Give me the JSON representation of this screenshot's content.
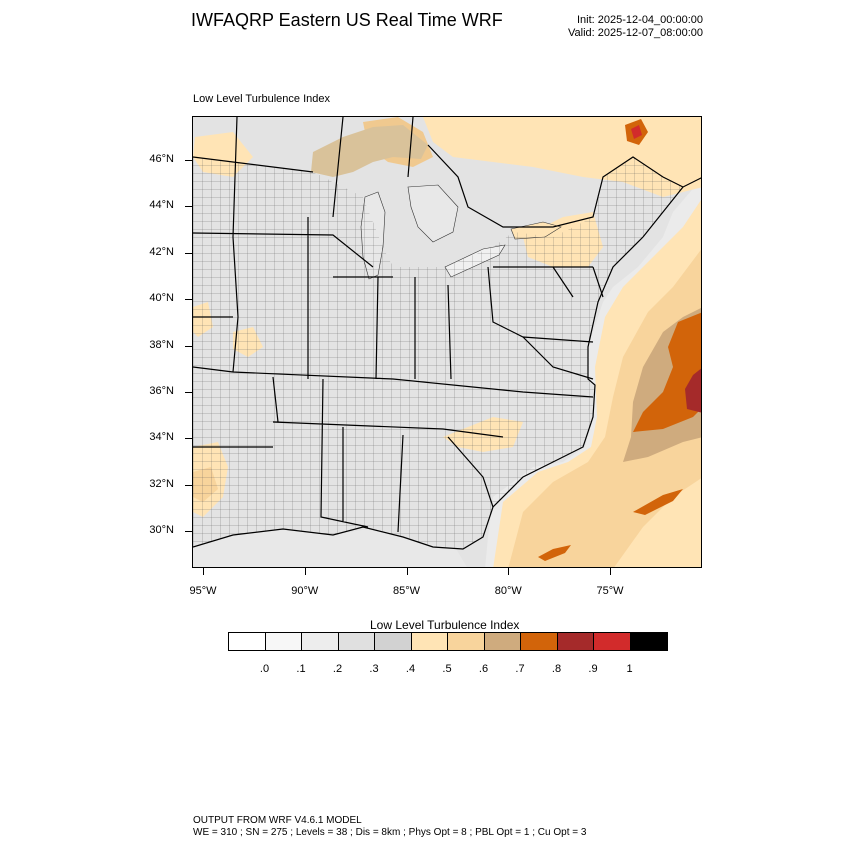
{
  "header": {
    "title": "IWFAQRP Eastern US Real Time WRF",
    "init": "Init: 2025-12-04_00:00:00",
    "valid": "Valid: 2025-12-07_08:00:00"
  },
  "panel": {
    "label": "Low Level Turbulence Index"
  },
  "map": {
    "lat_labels": [
      "46°N",
      "44°N",
      "42°N",
      "40°N",
      "38°N",
      "36°N",
      "34°N",
      "32°N",
      "30°N"
    ],
    "lon_labels": [
      "95°W",
      "90°W",
      "85°W",
      "80°W",
      "75°W"
    ],
    "land_color": "#e3e3e3",
    "water_color": "#ffffff"
  },
  "colorbar": {
    "title": "Low Level Turbulence Index",
    "colors": [
      "#ffffff",
      "#f7f7f7",
      "#ededed",
      "#e0e0e0",
      "#d2d2d2",
      "#ffe4b5",
      "#f8d49c",
      "#cfab7e",
      "#d2640a",
      "#a52a2a",
      "#d22b2b",
      "#000000"
    ],
    "labels": [
      ".0",
      ".1",
      ".2",
      ".3",
      ".4",
      ".5",
      ".6",
      ".7",
      ".8",
      ".9",
      "1"
    ]
  },
  "footer": {
    "line1": "OUTPUT FROM WRF V4.6.1 MODEL",
    "line2": "WE = 310 ; SN = 275 ; Levels = 38 ; Dis = 8km ; Phys Opt = 8 ; PBL Opt = 1 ; Cu Opt = 3"
  }
}
